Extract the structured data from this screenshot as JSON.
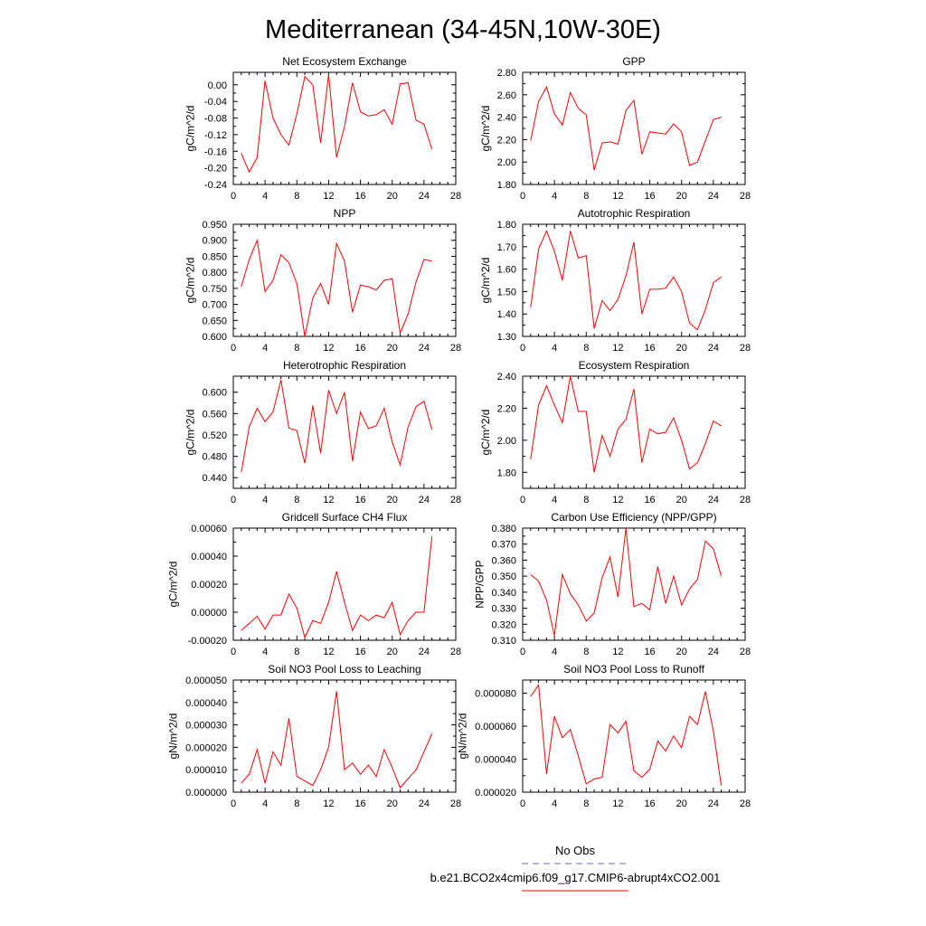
{
  "title": "Mediterranean (34-45N,10W-30E)",
  "legend": {
    "obs_label": "No Obs",
    "case_label": "b.e21.BCO2x4cmip6.f09_g17.CMIP6-abrupt4xCO2.001",
    "obs_color": "#6666cc",
    "case_color": "#ff0000"
  },
  "chart_data": [
    {
      "type": "line",
      "title": "Net Ecosystem Exchange",
      "ylabel": "gC/m^2/d",
      "xlim": [
        0,
        28
      ],
      "xticks": [
        "0",
        "4",
        "8",
        "12",
        "16",
        "20",
        "24",
        "28"
      ],
      "ylim": [
        -0.24,
        0.03
      ],
      "yticks": [
        "-0.24",
        "-0.20",
        "-0.16",
        "-0.12",
        "-0.08",
        "-0.04",
        "0.00"
      ],
      "series": [
        {
          "x": [
            1,
            2,
            3,
            4,
            5,
            6,
            7,
            8,
            9,
            10,
            11,
            12,
            13,
            14,
            15,
            16,
            17,
            18,
            19,
            20,
            21,
            22,
            23,
            24,
            25
          ],
          "values": [
            -0.165,
            -0.21,
            -0.175,
            0.01,
            -0.08,
            -0.12,
            -0.145,
            -0.07,
            0.02,
            0.0,
            -0.14,
            0.025,
            -0.175,
            -0.1,
            0.005,
            -0.065,
            -0.075,
            -0.072,
            -0.06,
            -0.095,
            0.002,
            0.005,
            -0.085,
            -0.095,
            -0.155
          ]
        }
      ]
    },
    {
      "type": "line",
      "title": "GPP",
      "ylabel": "gC/m^2/d",
      "xlim": [
        0,
        28
      ],
      "xticks": [
        "0",
        "4",
        "8",
        "12",
        "16",
        "20",
        "24",
        "28"
      ],
      "ylim": [
        1.8,
        2.8
      ],
      "yticks": [
        "1.80",
        "2.00",
        "2.20",
        "2.40",
        "2.60",
        "2.80"
      ],
      "series": [
        {
          "x": [
            1,
            2,
            3,
            4,
            5,
            6,
            7,
            8,
            9,
            10,
            11,
            12,
            13,
            14,
            15,
            16,
            17,
            18,
            19,
            20,
            21,
            22,
            23,
            24,
            25
          ],
          "values": [
            2.19,
            2.54,
            2.67,
            2.43,
            2.33,
            2.62,
            2.48,
            2.42,
            1.93,
            2.17,
            2.18,
            2.16,
            2.46,
            2.55,
            2.07,
            2.27,
            2.26,
            2.25,
            2.34,
            2.27,
            1.97,
            2.0,
            2.19,
            2.38,
            2.4
          ]
        }
      ]
    },
    {
      "type": "line",
      "title": "NPP",
      "ylabel": "gC/m^2/d",
      "xlim": [
        0,
        28
      ],
      "xticks": [
        "0",
        "4",
        "8",
        "12",
        "16",
        "20",
        "24",
        "28"
      ],
      "ylim": [
        0.6,
        0.95
      ],
      "yticks": [
        "0.600",
        "0.650",
        "0.700",
        "0.750",
        "0.800",
        "0.850",
        "0.900",
        "0.950"
      ],
      "series": [
        {
          "x": [
            1,
            2,
            3,
            4,
            5,
            6,
            7,
            8,
            9,
            10,
            11,
            12,
            13,
            14,
            15,
            16,
            17,
            18,
            19,
            20,
            21,
            22,
            23,
            24,
            25
          ],
          "values": [
            0.755,
            0.84,
            0.9,
            0.74,
            0.775,
            0.855,
            0.83,
            0.765,
            0.6,
            0.72,
            0.765,
            0.7,
            0.89,
            0.835,
            0.675,
            0.76,
            0.755,
            0.745,
            0.775,
            0.78,
            0.61,
            0.67,
            0.77,
            0.84,
            0.835
          ]
        }
      ]
    },
    {
      "type": "line",
      "title": "Autotrophic Respiration",
      "ylabel": "gC/m^2/d",
      "xlim": [
        0,
        28
      ],
      "xticks": [
        "0",
        "4",
        "8",
        "12",
        "16",
        "20",
        "24",
        "28"
      ],
      "ylim": [
        1.3,
        1.8
      ],
      "yticks": [
        "1.30",
        "1.40",
        "1.50",
        "1.60",
        "1.70",
        "1.80"
      ],
      "series": [
        {
          "x": [
            1,
            2,
            3,
            4,
            5,
            6,
            7,
            8,
            9,
            10,
            11,
            12,
            13,
            14,
            15,
            16,
            17,
            18,
            19,
            20,
            21,
            22,
            23,
            24,
            25
          ],
          "values": [
            1.43,
            1.69,
            1.77,
            1.68,
            1.55,
            1.77,
            1.65,
            1.66,
            1.335,
            1.46,
            1.415,
            1.465,
            1.57,
            1.72,
            1.4,
            1.51,
            1.51,
            1.515,
            1.565,
            1.5,
            1.36,
            1.33,
            1.42,
            1.54,
            1.565
          ]
        }
      ]
    },
    {
      "type": "line",
      "title": "Heterotrophic Respiration",
      "ylabel": "gC/m^2/d",
      "xlim": [
        0,
        28
      ],
      "xticks": [
        "0",
        "4",
        "8",
        "12",
        "16",
        "20",
        "24",
        "28"
      ],
      "ylim": [
        0.42,
        0.63
      ],
      "yticks": [
        "0.440",
        "0.480",
        "0.520",
        "0.560",
        "0.600"
      ],
      "series": [
        {
          "x": [
            1,
            2,
            3,
            4,
            5,
            6,
            7,
            8,
            9,
            10,
            11,
            12,
            13,
            14,
            15,
            16,
            17,
            18,
            19,
            20,
            21,
            22,
            23,
            24,
            25
          ],
          "values": [
            0.45,
            0.535,
            0.57,
            0.545,
            0.563,
            0.623,
            0.533,
            0.528,
            0.467,
            0.575,
            0.486,
            0.604,
            0.56,
            0.6,
            0.471,
            0.563,
            0.532,
            0.537,
            0.57,
            0.507,
            0.464,
            0.535,
            0.573,
            0.583,
            0.53
          ]
        }
      ]
    },
    {
      "type": "line",
      "title": "Ecosystem Respiration",
      "ylabel": "gC/m^2/d",
      "xlim": [
        0,
        28
      ],
      "xticks": [
        "0",
        "4",
        "8",
        "12",
        "16",
        "20",
        "24",
        "28"
      ],
      "ylim": [
        1.7,
        2.4
      ],
      "yticks": [
        "1.80",
        "2.00",
        "2.20",
        "2.40"
      ],
      "series": [
        {
          "x": [
            1,
            2,
            3,
            4,
            5,
            6,
            7,
            8,
            9,
            10,
            11,
            12,
            13,
            14,
            15,
            16,
            17,
            18,
            19,
            20,
            21,
            22,
            23,
            24,
            25
          ],
          "values": [
            1.88,
            2.22,
            2.34,
            2.22,
            2.11,
            2.4,
            2.18,
            2.18,
            1.8,
            2.03,
            1.9,
            2.07,
            2.13,
            2.32,
            1.86,
            2.07,
            2.04,
            2.05,
            2.14,
            2.0,
            1.82,
            1.86,
            1.98,
            2.12,
            2.09
          ]
        }
      ]
    },
    {
      "type": "line",
      "title": "Gridcell Surface CH4 Flux",
      "ylabel": "gC/m^2/d",
      "xlim": [
        0,
        28
      ],
      "xticks": [
        "0",
        "4",
        "8",
        "12",
        "16",
        "20",
        "24",
        "28"
      ],
      "ylim": [
        -0.0002,
        0.0006
      ],
      "yticks": [
        "-0.00020",
        "0.00000",
        "0.00020",
        "0.00040",
        "0.00060"
      ],
      "series": [
        {
          "x": [
            1,
            2,
            3,
            4,
            5,
            6,
            7,
            8,
            9,
            10,
            11,
            12,
            13,
            14,
            15,
            16,
            17,
            18,
            19,
            20,
            21,
            22,
            23,
            24,
            25
          ],
          "values": [
            -0.00013,
            -8e-05,
            -3e-05,
            -0.00012,
            -2e-05,
            -2e-05,
            0.00013,
            3e-05,
            -0.00018,
            -6e-05,
            -8e-05,
            7e-05,
            0.00029,
            7e-05,
            -0.00013,
            -2e-05,
            -6e-05,
            -2e-05,
            -4e-05,
            7e-05,
            -0.00016,
            -6e-05,
            0.0,
            0.0,
            0.00054
          ]
        }
      ]
    },
    {
      "type": "line",
      "title": "Carbon Use Efficiency (NPP/GPP)",
      "ylabel": "NPP/GPP",
      "xlim": [
        0,
        28
      ],
      "xticks": [
        "0",
        "4",
        "8",
        "12",
        "16",
        "20",
        "24",
        "28"
      ],
      "ylim": [
        0.31,
        0.38
      ],
      "yticks": [
        "0.310",
        "0.320",
        "0.330",
        "0.340",
        "0.350",
        "0.360",
        "0.370",
        "0.380"
      ],
      "series": [
        {
          "x": [
            1,
            2,
            3,
            4,
            5,
            6,
            7,
            8,
            9,
            10,
            11,
            12,
            13,
            14,
            15,
            16,
            17,
            18,
            19,
            20,
            21,
            22,
            23,
            24,
            25
          ],
          "values": [
            0.351,
            0.347,
            0.335,
            0.313,
            0.351,
            0.339,
            0.332,
            0.322,
            0.327,
            0.349,
            0.362,
            0.337,
            0.38,
            0.331,
            0.333,
            0.329,
            0.356,
            0.333,
            0.35,
            0.332,
            0.342,
            0.348,
            0.372,
            0.367,
            0.35
          ]
        }
      ]
    },
    {
      "type": "line",
      "title": "Soil NO3 Pool Loss to Leaching",
      "ylabel": "gN/m^2/d",
      "xlim": [
        0,
        28
      ],
      "xticks": [
        "0",
        "4",
        "8",
        "12",
        "16",
        "20",
        "24",
        "28"
      ],
      "ylim": [
        0.0,
        5e-05
      ],
      "yticks": [
        "0.000000",
        "0.000010",
        "0.000020",
        "0.000030",
        "0.000040",
        "0.000050"
      ],
      "series": [
        {
          "x": [
            1,
            2,
            3,
            4,
            5,
            6,
            7,
            8,
            9,
            10,
            11,
            12,
            13,
            14,
            15,
            16,
            17,
            18,
            19,
            20,
            21,
            22,
            23,
            24,
            25
          ],
          "values": [
            4e-06,
            8e-06,
            1.9e-05,
            4e-06,
            1.8e-05,
            1.2e-05,
            3.3e-05,
            7e-06,
            5e-06,
            3e-06,
            1e-05,
            2e-05,
            4.5e-05,
            1e-05,
            1.3e-05,
            8e-06,
            1.2e-05,
            7e-06,
            1.9e-05,
            1.1e-05,
            2e-06,
            6e-06,
            1e-05,
            1.8e-05,
            2.6e-05
          ]
        }
      ]
    },
    {
      "type": "line",
      "title": "Soil NO3 Pool Loss to Runoff",
      "ylabel": "gN/m^2/d",
      "xlim": [
        0,
        28
      ],
      "xticks": [
        "0",
        "4",
        "8",
        "12",
        "16",
        "20",
        "24",
        "28"
      ],
      "ylim": [
        2e-05,
        8.8e-05
      ],
      "yticks": [
        "0.000020",
        "0.000040",
        "0.000060",
        "0.000080"
      ],
      "series": [
        {
          "x": [
            1,
            2,
            3,
            4,
            5,
            6,
            7,
            8,
            9,
            10,
            11,
            12,
            13,
            14,
            15,
            16,
            17,
            18,
            19,
            20,
            21,
            22,
            23,
            24,
            25
          ],
          "values": [
            7.8e-05,
            8.5e-05,
            3.1e-05,
            6.6e-05,
            5.3e-05,
            5.8e-05,
            4.2e-05,
            2.5e-05,
            2.8e-05,
            2.9e-05,
            6.1e-05,
            5.6e-05,
            6.3e-05,
            3.3e-05,
            2.9e-05,
            3.4e-05,
            5.1e-05,
            4.5e-05,
            5.4e-05,
            4.7e-05,
            6.6e-05,
            6.1e-05,
            8.1e-05,
            5.7e-05,
            2.4e-05
          ]
        }
      ]
    }
  ]
}
